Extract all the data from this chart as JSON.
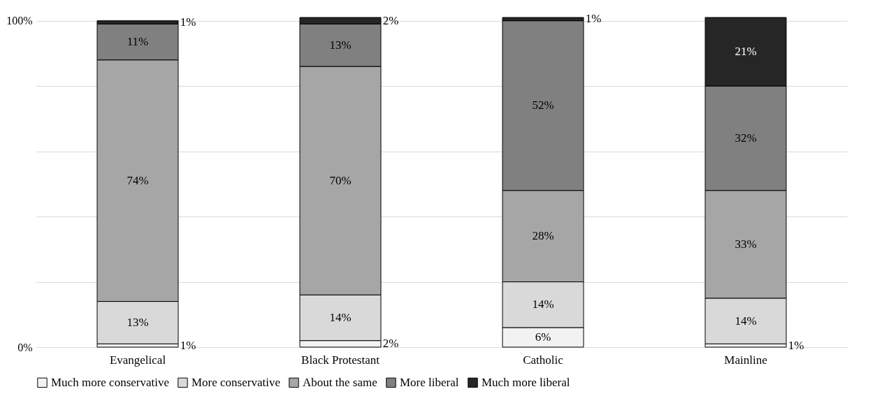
{
  "chart_data": {
    "type": "bar",
    "stacked": true,
    "categories": [
      "Evangelical",
      "Black Protestant",
      "Catholic",
      "Mainline"
    ],
    "ylim": [
      0,
      101
    ],
    "yticks": [
      {
        "value": 0,
        "label": "0%"
      },
      {
        "value": 20,
        "label": null
      },
      {
        "value": 40,
        "label": null
      },
      {
        "value": 60,
        "label": null
      },
      {
        "value": 80,
        "label": null
      },
      {
        "value": 100,
        "label": "100%"
      }
    ],
    "grid": "y",
    "legend": "bottom",
    "series": [
      {
        "name": "Much more conservative",
        "color": "#f2f2f2",
        "values": [
          1,
          2,
          6,
          1
        ],
        "value_labels": [
          "1%",
          "2%",
          "6%",
          "1%"
        ]
      },
      {
        "name": "More conservative",
        "color": "#d9d9d9",
        "values": [
          13,
          14,
          14,
          14
        ],
        "value_labels": [
          "13%",
          "14%",
          "14%",
          "14%"
        ]
      },
      {
        "name": "About the same",
        "color": "#a6a6a6",
        "values": [
          74,
          70,
          28,
          33
        ],
        "value_labels": [
          "74%",
          "70%",
          "28%",
          "33%"
        ]
      },
      {
        "name": "More liberal",
        "color": "#808080",
        "values": [
          11,
          13,
          52,
          32
        ],
        "value_labels": [
          "11%",
          "13%",
          "52%",
          "32%"
        ]
      },
      {
        "name": "Much more liberal",
        "color": "#262626",
        "values": [
          1,
          2,
          1,
          21
        ],
        "value_labels": [
          "1%",
          "2%",
          "1%",
          "21%"
        ]
      }
    ]
  }
}
